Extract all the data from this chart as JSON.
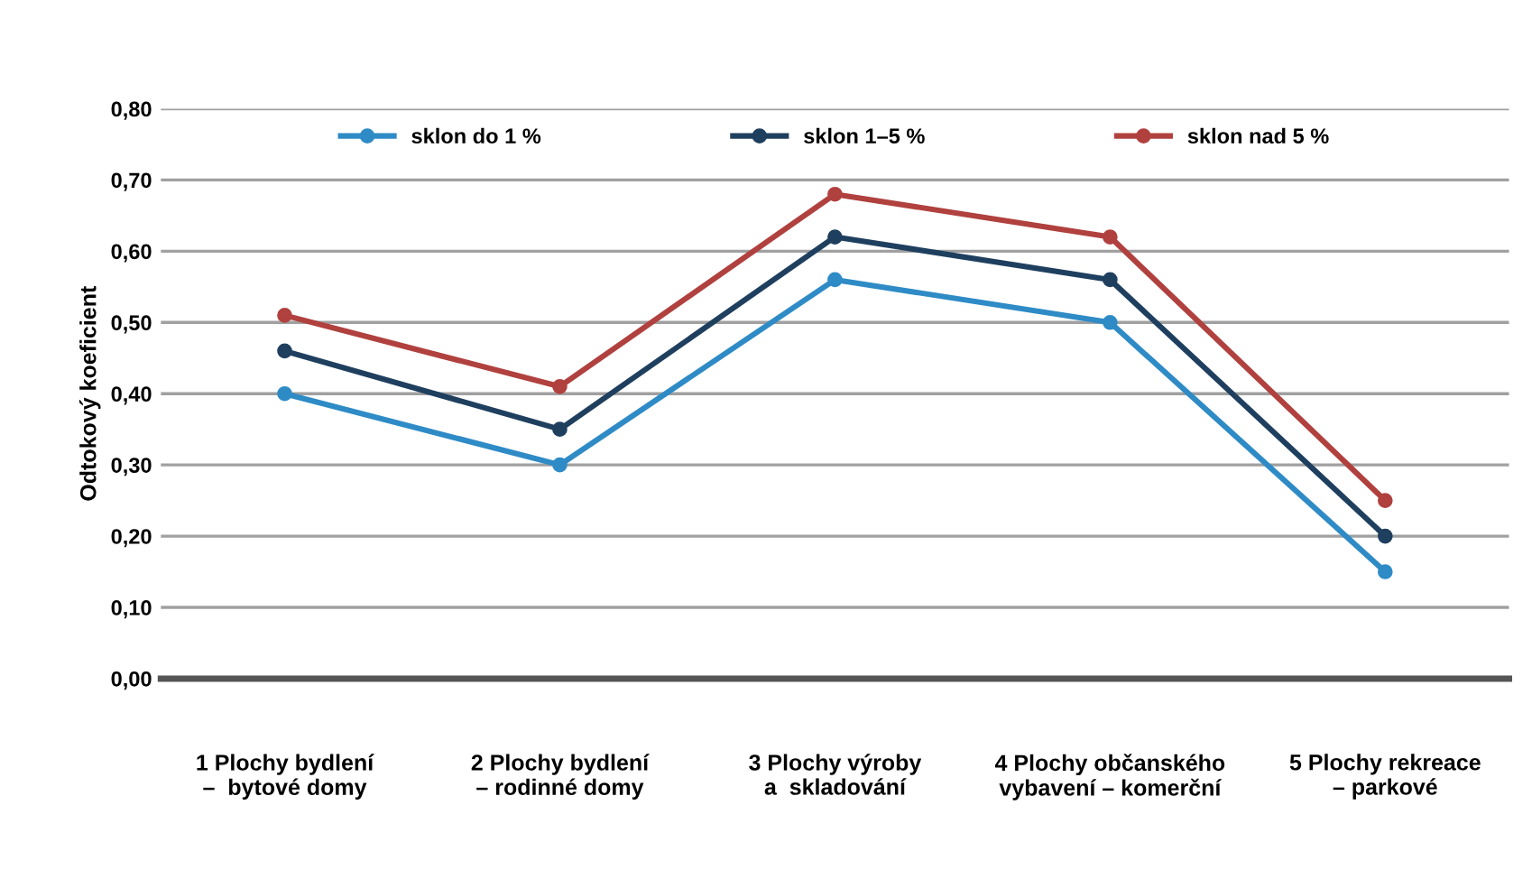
{
  "chart_data": {
    "type": "line",
    "ylabel": "Odtokový koeficient",
    "categories": [
      "1 Plochy bydlení\n–  bytové domy",
      "2 Plochy bydlení\n– rodinné domy",
      "3 Plochy výroby\na  skladování",
      "4 Plochy občanského\nvybavení – komerční",
      "5 Plochy rekreace\n– parkové"
    ],
    "series": [
      {
        "name": "sklon do 1 %",
        "color": "#2e8bc6",
        "values": [
          0.4,
          0.3,
          0.56,
          0.5,
          0.15
        ]
      },
      {
        "name": "sklon 1–5 %",
        "color": "#1f3f5f",
        "values": [
          0.46,
          0.35,
          0.62,
          0.56,
          0.2
        ]
      },
      {
        "name": "sklon nad 5 %",
        "color": "#b0413e",
        "values": [
          0.51,
          0.41,
          0.68,
          0.62,
          0.25
        ]
      }
    ],
    "ylim": [
      0,
      0.8
    ],
    "yticks": [
      {
        "value": 0,
        "label": "0,00"
      },
      {
        "value": 0.1,
        "label": "0,10"
      },
      {
        "value": 0.2,
        "label": "0,20"
      },
      {
        "value": 0.3,
        "label": "0,30"
      },
      {
        "value": 0.4,
        "label": "0,40"
      },
      {
        "value": 0.5,
        "label": "0,50"
      },
      {
        "value": 0.6,
        "label": "0,60"
      },
      {
        "value": 0.7,
        "label": "0,70"
      },
      {
        "value": 0.8,
        "label": "0,80"
      }
    ],
    "grid": "y",
    "legend": "top",
    "marker": "circle",
    "line_style": "solid"
  }
}
